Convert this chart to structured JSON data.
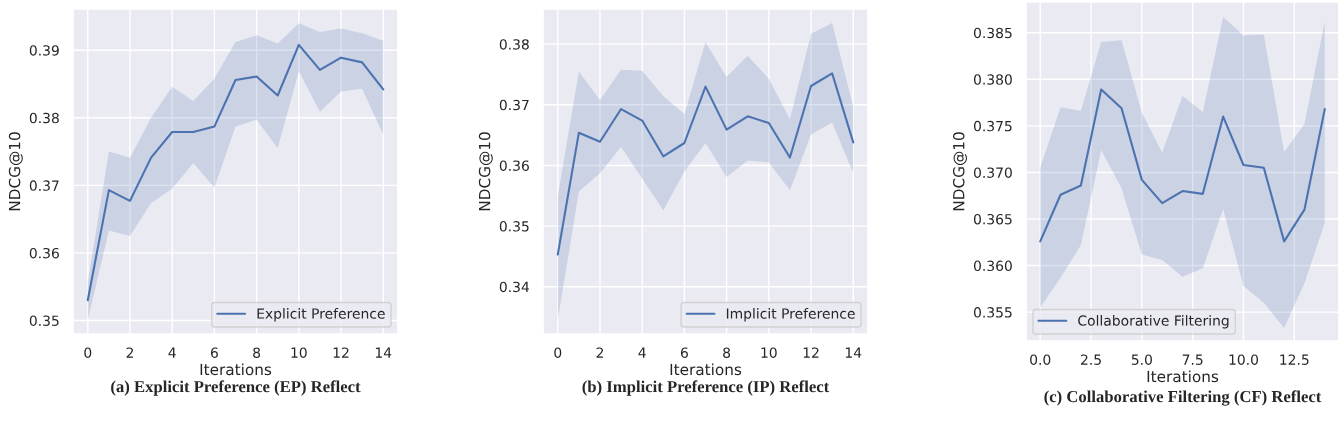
{
  "chart_data": [
    {
      "type": "line",
      "title": "(a) Explicit Preference (EP) Reflect",
      "xlabel": "Iterations",
      "ylabel": "NDCG@10",
      "legend": "bottom right",
      "grid": true,
      "line_style": "solid",
      "x": [
        0,
        1,
        2,
        3,
        4,
        5,
        6,
        7,
        8,
        9,
        10,
        11,
        12,
        13,
        14
      ],
      "series": [
        {
          "name": "Explicit Preference",
          "color": "#4c72b0",
          "values": [
            0.353,
            0.3693,
            0.3677,
            0.3741,
            0.3779,
            0.3779,
            0.3787,
            0.3856,
            0.3861,
            0.3833,
            0.3908,
            0.3871,
            0.3889,
            0.3882,
            0.3842
          ],
          "lower": [
            0.3501,
            0.3633,
            0.3625,
            0.3674,
            0.3695,
            0.3733,
            0.3697,
            0.3787,
            0.3797,
            0.3755,
            0.3869,
            0.3809,
            0.3839,
            0.3843,
            0.3775
          ],
          "upper": [
            0.3556,
            0.375,
            0.3741,
            0.38,
            0.3846,
            0.3825,
            0.3858,
            0.3912,
            0.3922,
            0.391,
            0.394,
            0.3927,
            0.3932,
            0.3925,
            0.3914
          ]
        }
      ],
      "xlim": [
        -0.7,
        14.7
      ],
      "xticks": [
        0,
        2,
        4,
        6,
        8,
        10,
        12,
        14
      ],
      "ylim": [
        0.348,
        0.3961
      ],
      "yticks": [
        0.35,
        0.36,
        0.37,
        0.38,
        0.39
      ]
    },
    {
      "type": "line",
      "title": "(b) Implicit Preference (IP) Reflect",
      "xlabel": "Iterations",
      "ylabel": "NDCG@10",
      "legend": "bottom right",
      "grid": true,
      "line_style": "solid",
      "x": [
        0,
        1,
        2,
        3,
        4,
        5,
        6,
        7,
        8,
        9,
        10,
        11,
        12,
        13,
        14
      ],
      "series": [
        {
          "name": "Implicit Preference",
          "color": "#4c72b0",
          "values": [
            0.3453,
            0.3654,
            0.3639,
            0.3693,
            0.3674,
            0.3615,
            0.3637,
            0.373,
            0.3659,
            0.3681,
            0.367,
            0.3613,
            0.3731,
            0.3752,
            0.3638
          ],
          "lower": [
            0.3345,
            0.3557,
            0.3587,
            0.3631,
            0.3578,
            0.3526,
            0.359,
            0.3637,
            0.3581,
            0.3608,
            0.3605,
            0.3559,
            0.3651,
            0.3671,
            0.3587
          ],
          "upper": [
            0.3549,
            0.3755,
            0.3708,
            0.3758,
            0.3756,
            0.3714,
            0.3685,
            0.3803,
            0.3746,
            0.3781,
            0.3743,
            0.3676,
            0.3817,
            0.3835,
            0.3697
          ]
        }
      ],
      "xlim": [
        -0.7,
        14.7
      ],
      "xticks": [
        0,
        2,
        4,
        6,
        8,
        10,
        12,
        14
      ],
      "ylim": [
        0.3322,
        0.3858
      ],
      "yticks": [
        0.34,
        0.35,
        0.36,
        0.37,
        0.38
      ]
    },
    {
      "type": "line",
      "title": "(c) Collaborative Filtering (CF) Reflect",
      "xlabel": "Iterations",
      "ylabel": "NDCG@10",
      "legend": "bottom left",
      "grid": true,
      "line_style": "solid",
      "x": [
        0,
        1,
        2,
        3,
        4,
        5,
        6,
        7,
        8,
        9,
        10,
        11,
        12,
        13,
        14
      ],
      "series": [
        {
          "name": "Collaborative Filtering",
          "color": "#4c72b0",
          "values": [
            0.3626,
            0.3676,
            0.3686,
            0.3789,
            0.3769,
            0.3692,
            0.3667,
            0.368,
            0.3677,
            0.376,
            0.3708,
            0.3705,
            0.3626,
            0.366,
            0.3768
          ],
          "lower": [
            0.3555,
            0.3587,
            0.3622,
            0.3724,
            0.3683,
            0.3612,
            0.3606,
            0.3588,
            0.3597,
            0.3661,
            0.3578,
            0.356,
            0.3533,
            0.3581,
            0.3646
          ],
          "upper": [
            0.3705,
            0.377,
            0.3766,
            0.384,
            0.3842,
            0.3764,
            0.3721,
            0.3782,
            0.3765,
            0.3867,
            0.3847,
            0.3848,
            0.3722,
            0.3752,
            0.3862
          ]
        }
      ],
      "xlim": [
        -0.7,
        14.7
      ],
      "xticks": [
        {
          "value": 0,
          "label": "0.0"
        },
        {
          "value": 2.5,
          "label": "2.5"
        },
        {
          "value": 5,
          "label": "5.0"
        },
        {
          "value": 7.5,
          "label": "7.5"
        },
        {
          "value": 10,
          "label": "10.0"
        },
        {
          "value": 12.5,
          "label": "12.5"
        }
      ],
      "ylim": [
        0.3519,
        0.3883
      ],
      "yticks": [
        {
          "value": 0.355,
          "label": "0.355"
        },
        {
          "value": 0.36,
          "label": "0.360"
        },
        {
          "value": 0.365,
          "label": "0.365"
        },
        {
          "value": 0.37,
          "label": "0.370"
        },
        {
          "value": 0.375,
          "label": "0.375"
        },
        {
          "value": 0.38,
          "label": "0.380"
        },
        {
          "value": 0.385,
          "label": "0.385"
        }
      ]
    }
  ]
}
